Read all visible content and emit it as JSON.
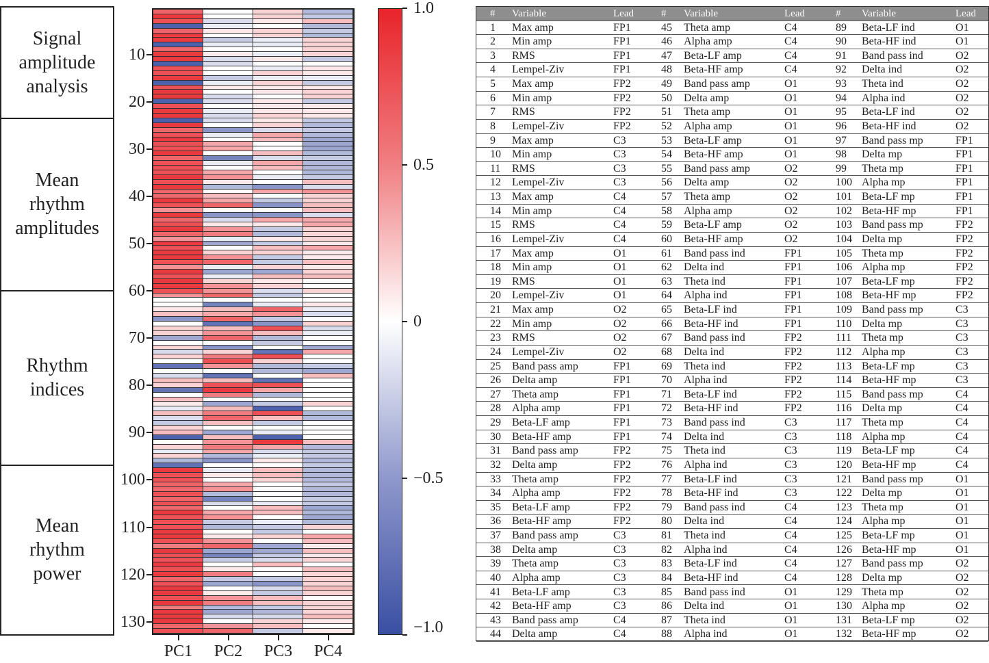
{
  "categories": [
    "Signal\namplitude\nanalysis",
    "Mean\nrhythm\namplitudes",
    "Rhythm\nindices",
    "Mean\nrhythm\npower"
  ],
  "table": {
    "headers": [
      "#",
      "Variable",
      "Lead"
    ],
    "rows": [
      [
        1,
        "Max amp",
        "FP1"
      ],
      [
        2,
        "Min amp",
        "FP1"
      ],
      [
        3,
        "RMS",
        "FP1"
      ],
      [
        4,
        "Lempel-Ziv",
        "FP1"
      ],
      [
        5,
        "Max amp",
        "FP2"
      ],
      [
        6,
        "Min amp",
        "FP2"
      ],
      [
        7,
        "RMS",
        "FP2"
      ],
      [
        8,
        "Lempel-Ziv",
        "FP2"
      ],
      [
        9,
        "Max amp",
        "C3"
      ],
      [
        10,
        "Min amp",
        "C3"
      ],
      [
        11,
        "RMS",
        "C3"
      ],
      [
        12,
        "Lempel-Ziv",
        "C3"
      ],
      [
        13,
        "Max amp",
        "C4"
      ],
      [
        14,
        "Min amp",
        "C4"
      ],
      [
        15,
        "RMS",
        "C4"
      ],
      [
        16,
        "Lempel-Ziv",
        "C4"
      ],
      [
        17,
        "Max amp",
        "O1"
      ],
      [
        18,
        "Min amp",
        "O1"
      ],
      [
        19,
        "RMS",
        "O1"
      ],
      [
        20,
        "Lempel-Ziv",
        "O1"
      ],
      [
        21,
        "Max amp",
        "O2"
      ],
      [
        22,
        "Min amp",
        "O2"
      ],
      [
        23,
        "RMS",
        "O2"
      ],
      [
        24,
        "Lempel-Ziv",
        "O2"
      ],
      [
        25,
        "Band pass amp",
        "FP1"
      ],
      [
        26,
        "Delta amp",
        "FP1"
      ],
      [
        27,
        "Theta amp",
        "FP1"
      ],
      [
        28,
        "Alpha amp",
        "FP1"
      ],
      [
        29,
        "Beta-LF amp",
        "FP1"
      ],
      [
        30,
        "Beta-HF amp",
        "FP1"
      ],
      [
        31,
        "Band pass amp",
        "FP2"
      ],
      [
        32,
        "Delta amp",
        "FP2"
      ],
      [
        33,
        "Theta amp",
        "FP2"
      ],
      [
        34,
        "Alpha amp",
        "FP2"
      ],
      [
        35,
        "Beta-LF amp",
        "FP2"
      ],
      [
        36,
        "Beta-HF amp",
        "FP2"
      ],
      [
        37,
        "Band pass amp",
        "C3"
      ],
      [
        38,
        "Delta amp",
        "C3"
      ],
      [
        39,
        "Theta amp",
        "C3"
      ],
      [
        40,
        "Alpha amp",
        "C3"
      ],
      [
        41,
        "Beta-LF amp",
        "C3"
      ],
      [
        42,
        "Beta-HF amp",
        "C3"
      ],
      [
        43,
        "Band pass amp",
        "C4"
      ],
      [
        44,
        "Delta amp",
        "C4"
      ],
      [
        45,
        "Theta amp",
        "C4"
      ],
      [
        46,
        "Alpha amp",
        "C4"
      ],
      [
        47,
        "Beta-LF amp",
        "C4"
      ],
      [
        48,
        "Beta-HF amp",
        "C4"
      ],
      [
        49,
        "Band pass amp",
        "O1"
      ],
      [
        50,
        "Delta amp",
        "O1"
      ],
      [
        51,
        "Theta amp",
        "O1"
      ],
      [
        52,
        "Alpha amp",
        "O1"
      ],
      [
        53,
        "Beta-LF amp",
        "O1"
      ],
      [
        54,
        "Beta-HF amp",
        "O1"
      ],
      [
        55,
        "Band pass amp",
        "O2"
      ],
      [
        56,
        "Delta amp",
        "O2"
      ],
      [
        57,
        "Theta amp",
        "O2"
      ],
      [
        58,
        "Alpha amp",
        "O2"
      ],
      [
        59,
        "Beta-LF amp",
        "O2"
      ],
      [
        60,
        "Beta-HF amp",
        "O2"
      ],
      [
        61,
        "Band pass ind",
        "FP1"
      ],
      [
        62,
        "Delta ind",
        "FP1"
      ],
      [
        63,
        "Theta ind",
        "FP1"
      ],
      [
        64,
        "Alpha ind",
        "FP1"
      ],
      [
        65,
        "Beta-LF ind",
        "FP1"
      ],
      [
        66,
        "Beta-HF ind",
        "FP1"
      ],
      [
        67,
        "Band pass ind",
        "FP2"
      ],
      [
        68,
        "Delta ind",
        "FP2"
      ],
      [
        69,
        "Theta ind",
        "FP2"
      ],
      [
        70,
        "Alpha ind",
        "FP2"
      ],
      [
        71,
        "Beta-LF ind",
        "FP2"
      ],
      [
        72,
        "Beta-HF ind",
        "FP2"
      ],
      [
        73,
        "Band pass ind",
        "C3"
      ],
      [
        74,
        "Delta ind",
        "C3"
      ],
      [
        75,
        "Theta ind",
        "C3"
      ],
      [
        76,
        "Alpha ind",
        "C3"
      ],
      [
        77,
        "Beta-LF ind",
        "C3"
      ],
      [
        78,
        "Beta-HF ind",
        "C3"
      ],
      [
        79,
        "Band pass ind",
        "C4"
      ],
      [
        80,
        "Delta ind",
        "C4"
      ],
      [
        81,
        "Theta ind",
        "C4"
      ],
      [
        82,
        "Alpha ind",
        "C4"
      ],
      [
        83,
        "Beta-LF ind",
        "C4"
      ],
      [
        84,
        "Beta-HF ind",
        "C4"
      ],
      [
        85,
        "Band pass ind",
        "O1"
      ],
      [
        86,
        "Delta ind",
        "O1"
      ],
      [
        87,
        "Theta ind",
        "O1"
      ],
      [
        88,
        "Alpha ind",
        "O1"
      ],
      [
        89,
        "Beta-LF ind",
        "O1"
      ],
      [
        90,
        "Beta-HF ind",
        "O1"
      ],
      [
        91,
        "Band pass ind",
        "O2"
      ],
      [
        92,
        "Delta ind",
        "O2"
      ],
      [
        93,
        "Theta ind",
        "O2"
      ],
      [
        94,
        "Alpha ind",
        "O2"
      ],
      [
        95,
        "Beta-LF ind",
        "O2"
      ],
      [
        96,
        "Beta-HF ind",
        "O2"
      ],
      [
        97,
        "Band pass mp",
        "FP1"
      ],
      [
        98,
        "Delta mp",
        "FP1"
      ],
      [
        99,
        "Theta mp",
        "FP1"
      ],
      [
        100,
        "Alpha mp",
        "FP1"
      ],
      [
        101,
        "Beta-LF mp",
        "FP1"
      ],
      [
        102,
        "Beta-HF mp",
        "FP1"
      ],
      [
        103,
        "Band pass mp",
        "FP2"
      ],
      [
        104,
        "Delta mp",
        "FP2"
      ],
      [
        105,
        "Theta mp",
        "FP2"
      ],
      [
        106,
        "Alpha mp",
        "FP2"
      ],
      [
        107,
        "Beta-LF mp",
        "FP2"
      ],
      [
        108,
        "Beta-HF mp",
        "FP2"
      ],
      [
        109,
        "Band pass mp",
        "C3"
      ],
      [
        110,
        "Delta mp",
        "C3"
      ],
      [
        111,
        "Theta mp",
        "C3"
      ],
      [
        112,
        "Alpha mp",
        "C3"
      ],
      [
        113,
        "Beta-LF mp",
        "C3"
      ],
      [
        114,
        "Beta-HF mp",
        "C3"
      ],
      [
        115,
        "Band pass mp",
        "C4"
      ],
      [
        116,
        "Delta mp",
        "C4"
      ],
      [
        117,
        "Theta mp",
        "C4"
      ],
      [
        118,
        "Alpha mp",
        "C4"
      ],
      [
        119,
        "Beta-LF mp",
        "C4"
      ],
      [
        120,
        "Beta-HF mp",
        "C4"
      ],
      [
        121,
        "Band pass mp",
        "O1"
      ],
      [
        122,
        "Delta mp",
        "O1"
      ],
      [
        123,
        "Theta mp",
        "O1"
      ],
      [
        124,
        "Alpha mp",
        "O1"
      ],
      [
        125,
        "Beta-LF mp",
        "O1"
      ],
      [
        126,
        "Beta-HF mp",
        "O1"
      ],
      [
        127,
        "Band pass mp",
        "O2"
      ],
      [
        128,
        "Delta mp",
        "O2"
      ],
      [
        129,
        "Theta mp",
        "O2"
      ],
      [
        130,
        "Alpha mp",
        "O2"
      ],
      [
        131,
        "Beta-LF mp",
        "O2"
      ],
      [
        132,
        "Beta-HF mp",
        "O2"
      ]
    ]
  },
  "chart_data": {
    "type": "heatmap",
    "xlabels": [
      "PC1",
      "PC2",
      "PC3",
      "PC4"
    ],
    "yticks": [
      "10",
      "20",
      "30",
      "40",
      "50",
      "60",
      "70",
      "80",
      "90",
      "100",
      "110",
      "120",
      "130"
    ],
    "ytick_values": [
      10,
      20,
      30,
      40,
      50,
      60,
      70,
      80,
      90,
      100,
      110,
      120,
      130
    ],
    "rows": 132,
    "colorbar": {
      "labels": [
        "1.0",
        "0.5",
        "0",
        "−0.5",
        "−1.0"
      ],
      "values": [
        1,
        0.5,
        0,
        -0.5,
        -1
      ],
      "range": [
        -1,
        1
      ],
      "low_color": "#3a4fa3",
      "mid_color": "#ffffff",
      "high_color": "#e8242a"
    },
    "series": [
      {
        "name": "PC1",
        "values": [
          0.7,
          0.9,
          0.8,
          -0.9,
          0.7,
          0.9,
          0.9,
          -0.9,
          0.7,
          0.9,
          0.9,
          -0.9,
          0.8,
          0.8,
          0.9,
          -0.9,
          0.8,
          0.9,
          0.9,
          -0.9,
          0.8,
          0.9,
          0.9,
          -0.9,
          0.9,
          0.7,
          0.8,
          0.9,
          0.8,
          0.8,
          0.9,
          0.7,
          0.8,
          0.8,
          0.8,
          0.9,
          0.8,
          0.9,
          0.7,
          0.7,
          0.9,
          0.8,
          0.5,
          0.9,
          0.7,
          0.8,
          0.9,
          0.7,
          0.5,
          0.9,
          0.8,
          0.9,
          0.9,
          0.8,
          0.5,
          0.9,
          0.8,
          0.9,
          0.9,
          0.8,
          0.5,
          0,
          0,
          0.1,
          0.3,
          -0.6,
          0,
          0.2,
          0.2,
          -0.5,
          0,
          0.2,
          -0.2,
          0.2,
          0,
          -0.8,
          0,
          -0.2,
          0.3,
          0.2,
          -0.8,
          0,
          0.3,
          0.1,
          -0.1,
          0.3,
          -0.2,
          -0.3,
          0.2,
          0.3,
          -0.9,
          0,
          0.2,
          -0.1,
          0.2,
          -0.4,
          -0.8,
          0.9,
          0.8,
          0.8,
          0.7,
          0.7,
          0.8,
          0.7,
          0.8,
          0.7,
          0.9,
          0.8,
          0.8,
          0.8,
          0.9,
          0.9,
          0.8,
          0.6,
          0.9,
          0.8,
          0.8,
          0.9,
          0.8,
          0.9,
          0.7,
          0.8,
          0.9,
          0.9,
          0.8,
          0.9,
          0.6,
          0.9,
          0.9,
          0.9,
          0.7,
          0.8
        ]
      },
      {
        "name": "PC2",
        "values": [
          0,
          0,
          -0.2,
          -0.1,
          0.1,
          0,
          -0.3,
          -0.1,
          0,
          0.1,
          -0.2,
          -0.2,
          0,
          0,
          -0.3,
          -0.1,
          0.1,
          0,
          -0.2,
          -0.2,
          0,
          -0.1,
          -0.2,
          -0.2,
          0,
          -0.6,
          -0.1,
          0,
          0.4,
          0.4,
          0,
          -0.7,
          -0.1,
          0,
          0.4,
          0.5,
          0.1,
          -0.4,
          0,
          0.3,
          0.4,
          0.7,
          0,
          -0.6,
          -0.2,
          0.1,
          0.5,
          0.6,
          -0.1,
          -0.5,
          0,
          0.2,
          0.5,
          0.7,
          -0.1,
          -0.5,
          -0.1,
          0.2,
          0.5,
          0.5,
          0.7,
          0,
          -0.7,
          0.3,
          0.4,
          0.7,
          -0.8,
          0.3,
          0.5,
          0.7,
          0,
          -0.6,
          0.2,
          0.6,
          0.8,
          0.5,
          0,
          -0.8,
          0.3,
          0.8,
          0.9,
          0.6,
          0,
          -0.5,
          0.3,
          0.6,
          0.7,
          0.3,
          0,
          -0.5,
          0.3,
          0.5,
          0.6,
          0.4,
          -0.4,
          -0.6,
          0,
          -0.1,
          0.1,
          0,
          0.4,
          0.5,
          -0.4,
          -0.7,
          -0.2,
          0,
          0.4,
          0.5,
          -0.3,
          -0.4,
          0,
          0.1,
          0.5,
          0.7,
          -0.5,
          -0.7,
          -0.3,
          0,
          0.1,
          0.6,
          -0.3,
          -0.5,
          0,
          0.1,
          0.5,
          0.6,
          -0.4,
          -0.5,
          -0.2,
          0,
          0.5,
          0.7
        ]
      },
      {
        "name": "PC3",
        "values": [
          0.2,
          0.2,
          0.1,
          0,
          0.2,
          0.2,
          -0.1,
          -0.1,
          0,
          -0.1,
          0.1,
          0,
          -0.1,
          0.2,
          -0.1,
          0.2,
          0.1,
          0.1,
          0,
          0.1,
          0.1,
          0.1,
          0.2,
          0.1,
          0.2,
          -0.2,
          0.4,
          0.3,
          0,
          0,
          0.3,
          -0.2,
          0.4,
          0.3,
          0,
          -0.1,
          0,
          -0.6,
          0.4,
          0,
          -0.3,
          -0.6,
          0,
          -0.6,
          0.4,
          0.1,
          -0.3,
          -0.4,
          0.1,
          -0.3,
          0.3,
          0.2,
          -0.3,
          -0.3,
          0.2,
          -0.5,
          0.3,
          0.1,
          0.2,
          -0.2,
          -0.3,
          0,
          -0.1,
          0.7,
          0.5,
          -0.3,
          -0.6,
          0.8,
          0.3,
          -0.4,
          -0.3,
          0,
          -0.8,
          0.8,
          0.2,
          -0.4,
          -0.4,
          0,
          -0.8,
          0.8,
          0.4,
          -0.4,
          0,
          -0.3,
          -0.9,
          0.8,
          0.3,
          -0.3,
          0,
          -0.1,
          -0.9,
          0.9,
          0.4,
          -0.2,
          -0.1,
          0.1,
          0,
          0.3,
          0.3,
          0.2,
          0,
          0,
          0,
          0,
          -0.1,
          0.3,
          0.3,
          0,
          -0.1,
          -0.3,
          -0.3,
          0.2,
          0,
          -0.5,
          -0.5,
          -0.3,
          -0.2,
          0.3,
          0,
          0,
          -0.3,
          -0.6,
          -0.2,
          -0.3,
          0.3,
          0.3,
          -0.3,
          -0.4,
          -0.2,
          0.2,
          0.3,
          -0.3
        ]
      },
      {
        "name": "PC4",
        "values": [
          -0.4,
          -0.3,
          0.3,
          -0.4,
          -0.3,
          -0.4,
          0.2,
          0.2,
          0.2,
          0.2,
          -0.3,
          0,
          0.1,
          0.1,
          -0.1,
          -0.3,
          0.1,
          0.2,
          0.2,
          -0.3,
          0.1,
          0.1,
          0.1,
          -0.3,
          -0.4,
          -0.3,
          -0.4,
          -0.5,
          -0.5,
          -0.5,
          -0.4,
          -0.3,
          -0.4,
          -0.4,
          -0.4,
          -0.3,
          0.3,
          -0.2,
          0.5,
          0.2,
          0.2,
          0.3,
          0.3,
          -0.2,
          0.4,
          0.4,
          0.2,
          0.2,
          0.2,
          0.1,
          0.4,
          0.1,
          0.1,
          0.3,
          0.1,
          0.2,
          0.3,
          0,
          0,
          0.2,
          0,
          0,
          0.1,
          -0.1,
          -0.2,
          0,
          0.2,
          -0.2,
          -0.1,
          0,
          0,
          -0.5,
          0.4,
          0,
          0,
          -0.3,
          -0.5,
          0.3,
          0,
          0,
          0,
          0,
          0,
          0.2,
          0,
          -0.4,
          -0.4,
          0,
          0,
          0,
          0,
          0.3,
          -0.4,
          -0.3,
          -0.3,
          -0.4,
          -0.3,
          -0.4,
          -0.4,
          -0.4,
          -0.3,
          -0.4,
          -0.4,
          -0.3,
          -0.3,
          -0.5,
          -0.4,
          -0.5,
          -0.4,
          0.2,
          0,
          0.4,
          0.3,
          0.1,
          0.3,
          0.1,
          0.2,
          0,
          0.3,
          0.2,
          0.2,
          0.2,
          0.3,
          0.2,
          0,
          0.2,
          0.2,
          0.2,
          0.3,
          0.1,
          0,
          0.1
        ]
      }
    ]
  }
}
